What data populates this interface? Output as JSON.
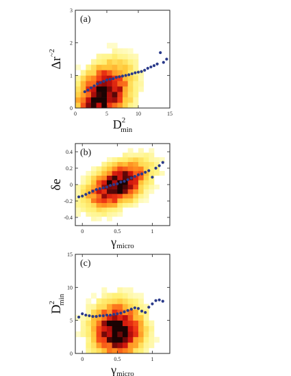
{
  "colors": {
    "heat_stops": [
      "#ffffe0",
      "#fff27a",
      "#ffc83a",
      "#ff8a1f",
      "#f03a14",
      "#c8100c",
      "#6a0808",
      "#1a0303"
    ],
    "binned_mean": "#2a3a8a",
    "frame": "#222222"
  },
  "chart_data": [
    {
      "type": "heatmap",
      "panel_label": "(a)",
      "xlabel_main": "D",
      "xlabel_sup": "2",
      "xlabel_sub": "min",
      "ylabel_main": "Δr",
      "ylabel_sup": "~2",
      "xlim": [
        0,
        15
      ],
      "ylim": [
        0,
        3
      ],
      "xticks": [
        {
          "v": 0,
          "t": "0"
        },
        {
          "v": 5,
          "t": "5"
        },
        {
          "v": 10,
          "t": "10"
        },
        {
          "v": 15,
          "t": "15"
        }
      ],
      "yticks": [
        {
          "v": 0,
          "t": "0"
        },
        {
          "v": 1,
          "t": "1"
        },
        {
          "v": 2,
          "t": "2"
        },
        {
          "v": 3,
          "t": "3"
        }
      ],
      "bin_x": [
        0,
        15,
        18
      ],
      "bin_y": [
        0,
        3,
        18
      ],
      "density_center": [
        4.5,
        0.4
      ],
      "density_spread": [
        2.6,
        0.55
      ],
      "density_tilt": 0.35,
      "scatter_x": [
        1.5,
        2.0,
        2.5,
        3.0,
        3.5,
        4.0,
        4.5,
        5.0,
        5.5,
        6.0,
        6.5,
        7.0,
        7.5,
        8.0,
        8.5,
        9.0,
        9.5,
        10.0,
        10.5,
        11.0,
        11.5,
        12.0,
        12.5,
        13.0,
        13.5,
        14.0,
        14.5
      ],
      "scatter_y": [
        0.5,
        0.55,
        0.62,
        0.68,
        0.74,
        0.78,
        0.82,
        0.86,
        0.88,
        0.9,
        0.94,
        0.96,
        0.98,
        1.0,
        1.02,
        1.05,
        1.08,
        1.1,
        1.12,
        1.16,
        1.22,
        1.26,
        1.3,
        1.35,
        1.7,
        1.4,
        1.5
      ]
    },
    {
      "type": "heatmap",
      "panel_label": "(b)",
      "xlabel_main": "γ",
      "xlabel_sub": "micro",
      "ylabel_main": "δe",
      "xlim": [
        -0.1,
        1.25
      ],
      "ylim": [
        -0.5,
        0.5
      ],
      "xticks": [
        {
          "v": 0,
          "t": "0"
        },
        {
          "v": 0.5,
          "t": "0.5"
        },
        {
          "v": 1,
          "t": "1"
        }
      ],
      "yticks": [
        {
          "v": -0.4,
          "t": "-0.4"
        },
        {
          "v": -0.2,
          "t": "-0.2"
        },
        {
          "v": 0,
          "t": "0"
        },
        {
          "v": 0.2,
          "t": "0.2"
        },
        {
          "v": 0.4,
          "t": "0.4"
        }
      ],
      "bin_x": [
        -0.1,
        1.25,
        18
      ],
      "bin_y": [
        -0.5,
        0.5,
        18
      ],
      "density_center": [
        0.5,
        0.0
      ],
      "density_spread": [
        0.26,
        0.15
      ],
      "density_tilt": 0.55,
      "scatter_x": [
        -0.05,
        0.0,
        0.05,
        0.1,
        0.15,
        0.2,
        0.25,
        0.3,
        0.35,
        0.4,
        0.45,
        0.5,
        0.55,
        0.6,
        0.65,
        0.7,
        0.75,
        0.8,
        0.85,
        0.9,
        0.95,
        1.0,
        1.05,
        1.1,
        1.15
      ],
      "scatter_y": [
        -0.15,
        -0.14,
        -0.12,
        -0.1,
        -0.08,
        -0.06,
        -0.05,
        -0.04,
        -0.03,
        -0.01,
        0.0,
        0.01,
        0.03,
        0.04,
        0.06,
        0.08,
        0.1,
        0.12,
        0.13,
        0.15,
        0.17,
        0.09,
        0.2,
        0.23,
        0.27
      ]
    },
    {
      "type": "heatmap",
      "panel_label": "(c)",
      "xlabel_main": "γ",
      "xlabel_sub": "micro",
      "ylabel_main": "D",
      "ylabel_sup": "2",
      "ylabel_sub": "min",
      "xlim": [
        -0.1,
        1.25
      ],
      "ylim": [
        0,
        15
      ],
      "xticks": [
        {
          "v": 0,
          "t": "0"
        },
        {
          "v": 0.5,
          "t": "0.5"
        },
        {
          "v": 1,
          "t": "1"
        }
      ],
      "yticks": [
        {
          "v": 0,
          "t": "0"
        },
        {
          "v": 5,
          "t": "5"
        },
        {
          "v": 10,
          "t": "10"
        },
        {
          "v": 15,
          "t": "15"
        }
      ],
      "bin_x": [
        -0.1,
        1.25,
        18
      ],
      "bin_y": [
        0,
        15,
        18
      ],
      "density_center": [
        0.5,
        3.5
      ],
      "density_spread": [
        0.22,
        2.6
      ],
      "density_tilt": 0.0,
      "scatter_x": [
        -0.05,
        0.0,
        0.05,
        0.1,
        0.15,
        0.2,
        0.25,
        0.3,
        0.35,
        0.4,
        0.45,
        0.5,
        0.55,
        0.6,
        0.65,
        0.7,
        0.75,
        0.8,
        0.85,
        0.9,
        0.95,
        1.0,
        1.05,
        1.1,
        1.15
      ],
      "scatter_y": [
        5.5,
        6.0,
        5.8,
        5.7,
        5.6,
        5.6,
        5.7,
        5.7,
        5.8,
        5.8,
        5.9,
        6.0,
        6.1,
        6.3,
        6.5,
        6.7,
        6.9,
        6.8,
        6.4,
        6.2,
        7.0,
        7.5,
        8.0,
        8.1,
        7.9
      ]
    }
  ]
}
